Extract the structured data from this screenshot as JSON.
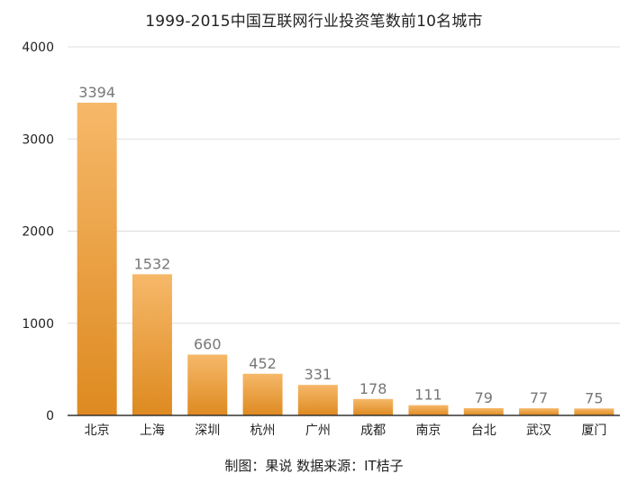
{
  "chart_data": {
    "type": "bar",
    "title": "1999-2015中国互联网行业投资笔数前10名城市",
    "caption": "制图：果说   数据来源：IT桔子",
    "categories": [
      "北京",
      "上海",
      "深圳",
      "杭州",
      "广州",
      "成都",
      "南京",
      "台北",
      "武汉",
      "厦门"
    ],
    "values": [
      3394,
      1532,
      660,
      452,
      331,
      178,
      111,
      79,
      77,
      75
    ],
    "data_labels": [
      "3394",
      "1532",
      "660",
      "452",
      "331",
      "178",
      "111",
      "79",
      "77",
      "75"
    ],
    "ylim": [
      0,
      4000
    ],
    "yticks": [
      0,
      1000,
      2000,
      3000,
      4000
    ],
    "ytick_labels": [
      "0",
      "1000",
      "2000",
      "3000",
      "4000"
    ],
    "grid": true,
    "legend": "none",
    "colors": {
      "bar_top": "#f6b869",
      "bar_bottom": "#de8a20",
      "grid": "#dddddd",
      "axis": "#333333"
    }
  }
}
